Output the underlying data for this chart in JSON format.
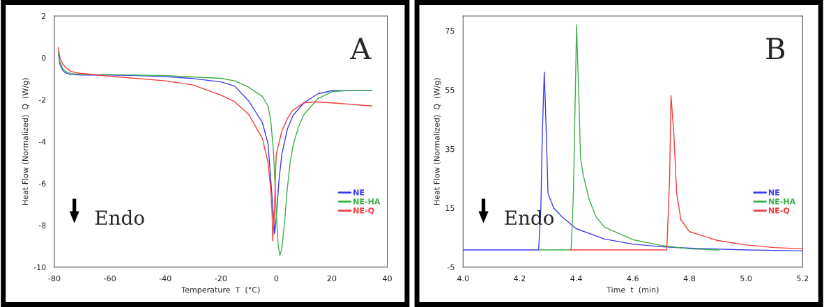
{
  "chart_data": [
    {
      "type": "line",
      "xlabel": "Temperature  T  (°C)",
      "ylabel": "Heat Flow (Normalized)  Q  (W/g)",
      "xlim": [
        -80,
        40
      ],
      "ylim": [
        -10,
        2
      ],
      "xticks": [
        -80,
        -60,
        -40,
        -20,
        0,
        20,
        40
      ],
      "yticks": [
        -10,
        -8,
        -6,
        -4,
        -2,
        0,
        2
      ],
      "grid": false,
      "legend": "bottom right",
      "annotations": [
        "A",
        "Endo"
      ],
      "series": [
        {
          "name": "NE",
          "color": "#3c3cf0",
          "x": [
            -78.5,
            -78,
            -77,
            -76,
            -74,
            -70,
            -60,
            -50,
            -40,
            -30,
            -20,
            -15,
            -10,
            -5,
            -3,
            -2,
            -1,
            -0.6,
            0,
            1,
            2,
            4,
            6,
            10,
            15,
            20,
            25,
            34.5
          ],
          "values": [
            0.15,
            -0.3,
            -0.6,
            -0.72,
            -0.8,
            -0.82,
            -0.82,
            -0.85,
            -0.9,
            -0.99,
            -1.15,
            -1.35,
            -2.05,
            -3.1,
            -4.1,
            -5.8,
            -7.6,
            -8.4,
            -7.6,
            -5.8,
            -4.6,
            -3.4,
            -2.75,
            -2.15,
            -1.72,
            -1.57,
            -1.57,
            -1.57
          ]
        },
        {
          "name": "NE-HA",
          "color": "#3cb04a",
          "x": [
            -78.6,
            -78,
            -77,
            -76,
            -74,
            -70,
            -60,
            -40,
            -20,
            -15,
            -10,
            -5,
            -3,
            -2,
            -1,
            -0.5,
            0,
            0.7,
            1.3,
            2,
            3,
            4,
            5,
            6,
            8,
            10,
            15,
            20,
            25,
            34.5
          ],
          "values": [
            0.3,
            -0.2,
            -0.5,
            -0.65,
            -0.75,
            -0.8,
            -0.8,
            -0.85,
            -0.98,
            -1.1,
            -1.4,
            -1.85,
            -2.3,
            -3.0,
            -4.5,
            -6.0,
            -7.5,
            -9.0,
            -9.45,
            -9.1,
            -7.8,
            -6.2,
            -5.0,
            -4.2,
            -3.3,
            -2.7,
            -1.95,
            -1.62,
            -1.57,
            -1.57
          ]
        },
        {
          "name": "NE-Q",
          "color": "#f03c3c",
          "x": [
            -78.6,
            -78,
            -77,
            -76,
            -74,
            -72,
            -60,
            -40,
            -30,
            -20,
            -15,
            -10,
            -5,
            -3,
            -2,
            -1.5,
            -1.3,
            -0.7,
            -0.3,
            0,
            2,
            4,
            6,
            10,
            14,
            20,
            34.5
          ],
          "values": [
            0.5,
            0.0,
            -0.3,
            -0.45,
            -0.65,
            -0.72,
            -0.88,
            -1.1,
            -1.3,
            -1.78,
            -2.1,
            -2.7,
            -3.85,
            -5.0,
            -6.3,
            -7.5,
            -8.75,
            -7.5,
            -5.5,
            -4.6,
            -3.5,
            -2.9,
            -2.5,
            -2.15,
            -2.1,
            -2.15,
            -2.3
          ]
        }
      ]
    },
    {
      "type": "line",
      "xlabel": "Time  t  (min)",
      "ylabel": "Heat Flow (Normalized)  Q  (W/g)",
      "xlim": [
        4.0,
        5.2
      ],
      "ylim": [
        -5,
        80
      ],
      "xticks": [
        {
          "value": 4.0,
          "label": "4.0"
        },
        4.2,
        4.4,
        4.6,
        4.8,
        {
          "value": 5.0,
          "label": "5.0"
        },
        5.2
      ],
      "yticks": [
        -5,
        15,
        35,
        55,
        75
      ],
      "grid": false,
      "legend": "bottom right",
      "annotations": [
        "B",
        "Endo"
      ],
      "series": [
        {
          "name": "NE",
          "color": "#3c3cf0",
          "x": [
            4.0,
            4.267,
            4.275,
            4.28,
            4.287,
            4.295,
            4.3,
            4.32,
            4.35,
            4.4,
            4.5,
            4.6,
            4.7,
            4.8,
            5.0,
            5.2
          ],
          "values": [
            0.8,
            0.8,
            15,
            40,
            61,
            38,
            20,
            15,
            12,
            8,
            4.5,
            2.8,
            1.9,
            1.4,
            0.8,
            0.5
          ]
        },
        {
          "name": "NE-HA",
          "color": "#3cb04a",
          "x": [
            4.268,
            4.382,
            4.39,
            4.398,
            4.401,
            4.41,
            4.415,
            4.425,
            4.445,
            4.47,
            4.5,
            4.6,
            4.7,
            4.8,
            4.905
          ],
          "values": [
            0.8,
            0.8,
            20,
            60,
            77,
            50,
            32,
            26,
            18,
            12,
            8.5,
            4.3,
            2.3,
            1.2,
            0.8
          ]
        },
        {
          "name": "NE-Q",
          "color": "#f03c3c",
          "x": [
            4.38,
            4.72,
            4.73,
            4.735,
            4.745,
            4.755,
            4.77,
            4.8,
            4.9,
            5.0,
            5.1,
            5.2
          ],
          "values": [
            0.8,
            0.8,
            25,
            53,
            40,
            20,
            11,
            7,
            4,
            2.5,
            1.6,
            1.2
          ]
        }
      ]
    }
  ]
}
